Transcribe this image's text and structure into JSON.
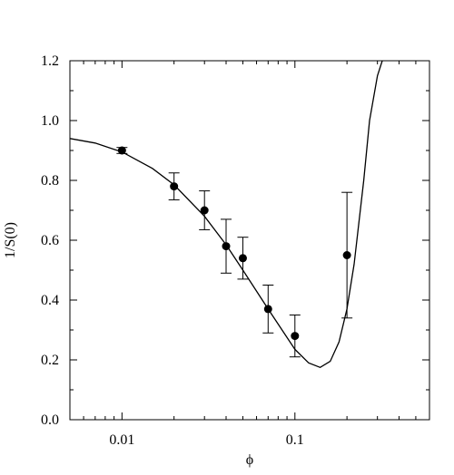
{
  "chart_data": {
    "type": "scatter",
    "xlabel": "ϕ",
    "ylabel": "1/S(0)",
    "xscale": "log",
    "xlim": [
      0.005,
      0.6
    ],
    "ylim": [
      0.0,
      1.2
    ],
    "x_ticks": [
      0.01,
      0.1
    ],
    "x_tick_labels": [
      "0.01",
      "0.1"
    ],
    "y_ticks": [
      0.0,
      0.2,
      0.4,
      0.6,
      0.8,
      1.0,
      1.2
    ],
    "y_tick_labels": [
      "0.0",
      "0.2",
      "0.4",
      "0.6",
      "0.8",
      "1.0",
      "1.2"
    ],
    "grid": false,
    "series": [
      {
        "kind": "points_with_error_bars",
        "x": [
          0.01,
          0.02,
          0.03,
          0.04,
          0.05,
          0.07,
          0.1,
          0.2
        ],
        "y": [
          0.9,
          0.78,
          0.7,
          0.58,
          0.54,
          0.37,
          0.28,
          0.55
        ],
        "y_err_upper": [
          0.01,
          0.045,
          0.065,
          0.09,
          0.07,
          0.08,
          0.07,
          0.21
        ],
        "y_err_lower": [
          0.01,
          0.045,
          0.065,
          0.09,
          0.07,
          0.08,
          0.07,
          0.21
        ]
      },
      {
        "kind": "fit_curve",
        "x": [
          0.005,
          0.007,
          0.01,
          0.015,
          0.02,
          0.03,
          0.04,
          0.05,
          0.07,
          0.1,
          0.12,
          0.14,
          0.16,
          0.18,
          0.2,
          0.22,
          0.25,
          0.27,
          0.3,
          0.32
        ],
        "y": [
          0.94,
          0.925,
          0.895,
          0.84,
          0.785,
          0.68,
          0.585,
          0.5,
          0.37,
          0.235,
          0.19,
          0.175,
          0.195,
          0.26,
          0.37,
          0.52,
          0.8,
          1.0,
          1.15,
          1.2
        ]
      }
    ]
  }
}
